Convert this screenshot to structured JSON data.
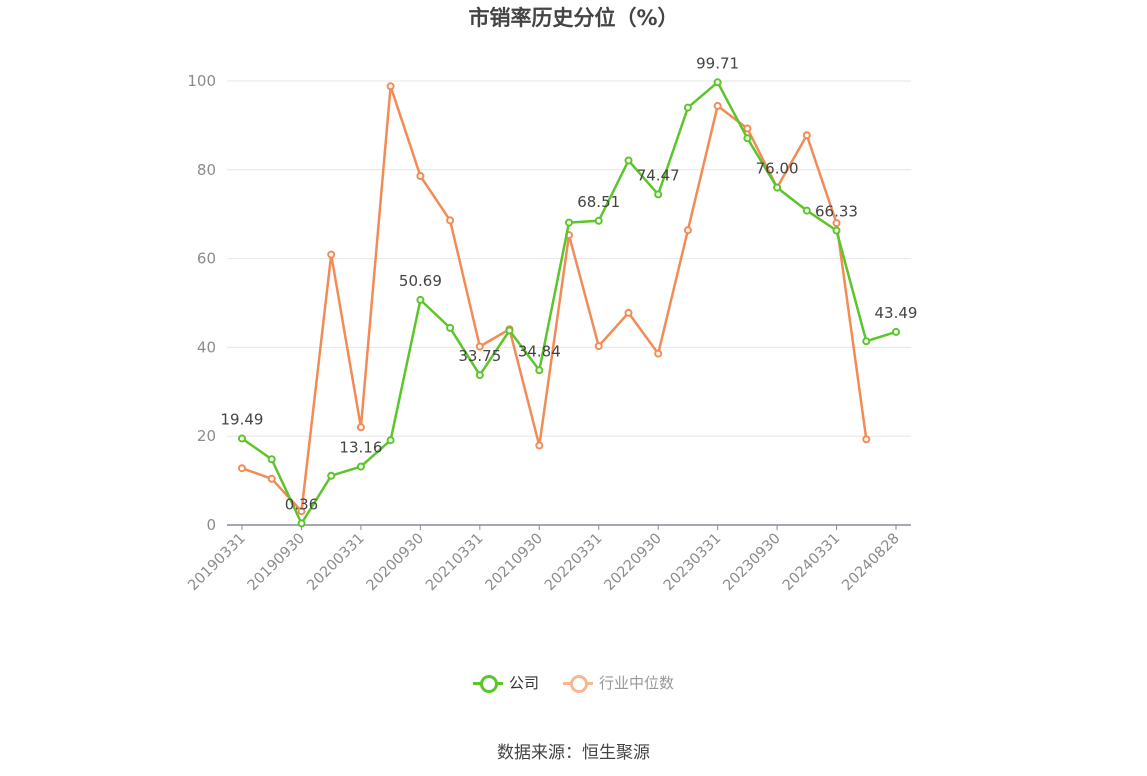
{
  "title": "市销率历史分位（%）",
  "source": "数据来源：恒生聚源",
  "legend": {
    "company": "公司",
    "industry": "行业中位数"
  },
  "colors": {
    "company": "#5cc52a",
    "industry": "#f28b55",
    "industry_legend": "#f8b894",
    "grid": "#e6e6e6",
    "axis": "#8a8a9a",
    "tick_text": "#8c8c8c",
    "label_text": "#444444"
  },
  "chart_data": {
    "type": "line",
    "title": "市销率历史分位（%）",
    "ylim": [
      0,
      100
    ],
    "yticks": [
      0,
      20,
      40,
      60,
      80,
      100
    ],
    "grid": true,
    "legend_position": "bottom-center",
    "x": [
      "20190331",
      "20190630",
      "20190930",
      "20191231",
      "20200331",
      "20200630",
      "20200930",
      "20201231",
      "20210331",
      "20210630",
      "20210930",
      "20211231",
      "20220331",
      "20220630",
      "20220930",
      "20221231",
      "20230331",
      "20230630",
      "20230930",
      "20231231",
      "20240331",
      "20240630",
      "20240828"
    ],
    "x_tick_labels": [
      "20190331",
      "20190930",
      "20200331",
      "20200930",
      "20210331",
      "20210930",
      "20220331",
      "20220930",
      "20230331",
      "20230930",
      "20240331",
      "20240828"
    ],
    "series": [
      {
        "name": "公司",
        "values": [
          19.49,
          14.8,
          0.36,
          11.1,
          13.16,
          19.1,
          50.69,
          44.4,
          33.75,
          43.8,
          34.84,
          68.1,
          68.51,
          82.1,
          74.47,
          94.0,
          99.71,
          87.1,
          76.0,
          70.8,
          66.33,
          41.4,
          43.49
        ],
        "labels": [
          "19.49",
          null,
          "0.36",
          null,
          "13.16",
          null,
          "50.69",
          null,
          "33.75",
          null,
          "34.84",
          null,
          "68.51",
          null,
          "74.47",
          null,
          "99.71",
          null,
          "76.00",
          null,
          "66.33",
          null,
          "43.49"
        ]
      },
      {
        "name": "行业中位数",
        "values": [
          12.8,
          10.4,
          3.1,
          60.9,
          22.0,
          98.8,
          78.6,
          68.6,
          40.2,
          44.1,
          17.9,
          65.3,
          40.3,
          47.8,
          38.6,
          66.4,
          94.4,
          89.3,
          76.0,
          87.8,
          68.0,
          19.3,
          null
        ]
      }
    ]
  }
}
